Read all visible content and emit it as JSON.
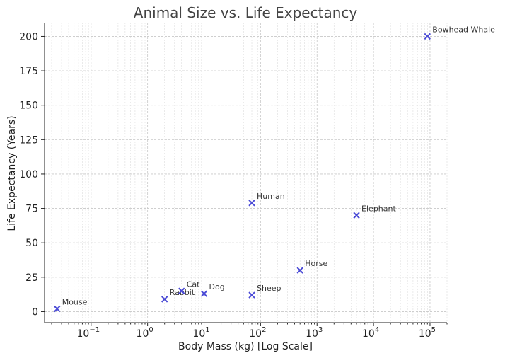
{
  "chart_data": {
    "type": "scatter",
    "title": "Animal Size vs. Life Expectancy",
    "xlabel": "Body Mass (kg) [Log Scale]",
    "ylabel": "Life Expectancy (Years)",
    "xscale": "log",
    "xlim": [
      0.015,
      200000
    ],
    "ylim": [
      -8,
      210
    ],
    "grid": true,
    "marker": "x",
    "marker_color": "#4b4bd6",
    "x_ticks": [
      {
        "value": 0.1,
        "base": "10",
        "exp": "−1"
      },
      {
        "value": 1,
        "base": "10",
        "exp": "0"
      },
      {
        "value": 10,
        "base": "10",
        "exp": "1"
      },
      {
        "value": 100,
        "base": "10",
        "exp": "2"
      },
      {
        "value": 1000,
        "base": "10",
        "exp": "3"
      },
      {
        "value": 10000,
        "base": "10",
        "exp": "4"
      },
      {
        "value": 100000,
        "base": "10",
        "exp": "5"
      }
    ],
    "y_ticks": [
      0,
      25,
      50,
      75,
      100,
      125,
      150,
      175,
      200
    ],
    "points": [
      {
        "label": "Mouse",
        "x": 0.025,
        "y": 2
      },
      {
        "label": "Rabbit",
        "x": 2,
        "y": 9
      },
      {
        "label": "Cat",
        "x": 4,
        "y": 15
      },
      {
        "label": "Dog",
        "x": 10,
        "y": 13
      },
      {
        "label": "Human",
        "x": 70,
        "y": 79
      },
      {
        "label": "Sheep",
        "x": 70,
        "y": 12
      },
      {
        "label": "Horse",
        "x": 500,
        "y": 30
      },
      {
        "label": "Elephant",
        "x": 5000,
        "y": 70
      },
      {
        "label": "Bowhead Whale",
        "x": 90000,
        "y": 200
      }
    ]
  }
}
